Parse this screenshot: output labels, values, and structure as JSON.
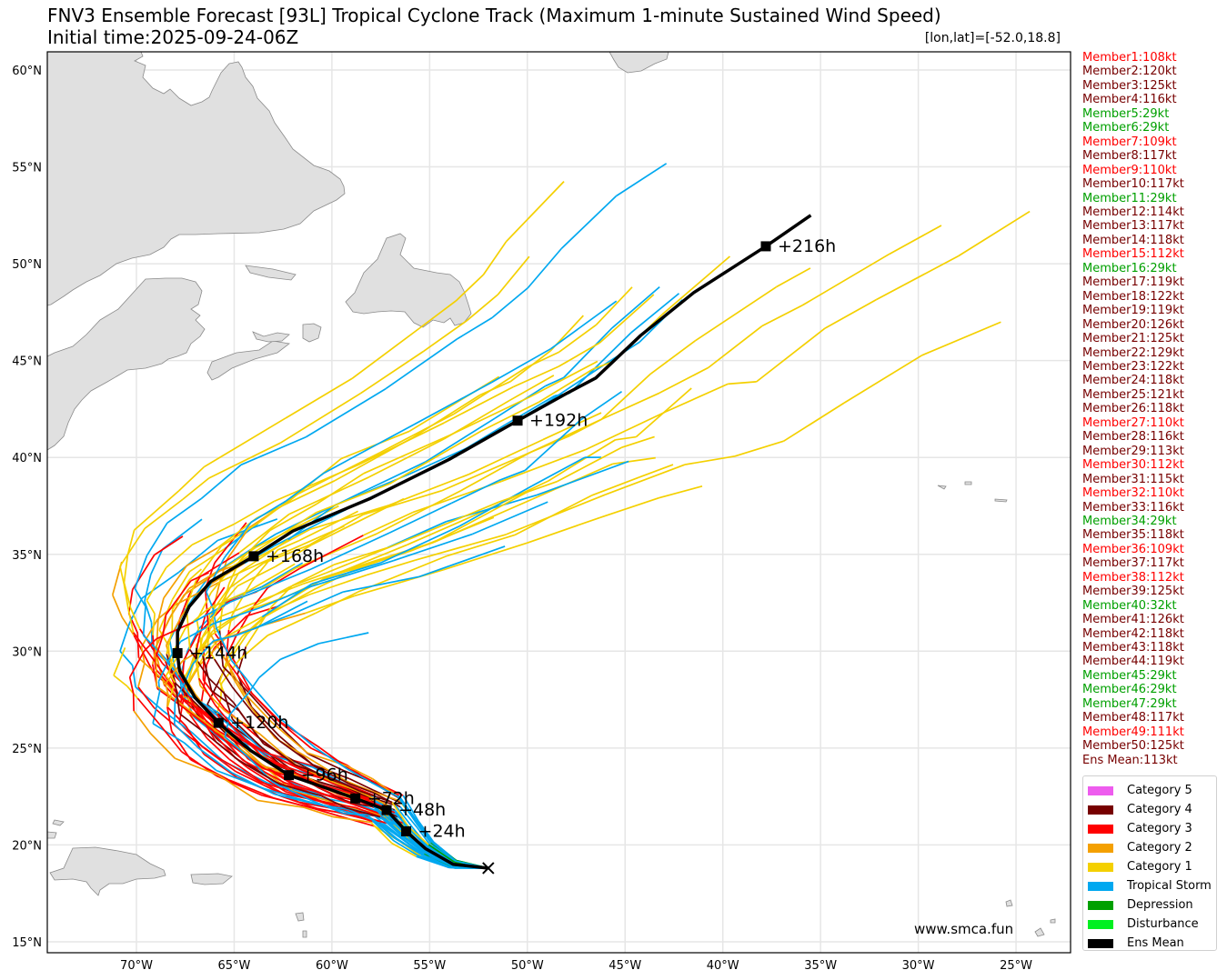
{
  "header": {
    "title": "FNV3 Ensemble Forecast [93L] Tropical Cyclone Track (Maximum 1-minute Sustained Wind Speed)",
    "subtitle": "Initial time:2025-09-24-06Z",
    "coordinates": "[lon,lat]=[-52.0,18.8]"
  },
  "watermark": "www.smca.fun",
  "axes": {
    "x_ticks": [
      "70°W",
      "65°W",
      "60°W",
      "55°W",
      "50°W",
      "45°W",
      "40°W",
      "35°W",
      "30°W",
      "25°W"
    ],
    "y_ticks": [
      "60°N",
      "55°N",
      "50°N",
      "45°N",
      "40°N",
      "35°N",
      "30°N",
      "25°N",
      "20°N",
      "15°N"
    ]
  },
  "colors": {
    "cat5": "#ee5cee",
    "cat4": "#770000",
    "cat3": "#ff0000",
    "cat2": "#f4a000",
    "cat1": "#f4d000",
    "ts": "#00a8f0",
    "td": "#00a000",
    "dist": "#00f020",
    "mean": "#000000"
  },
  "members": [
    {
      "label": "Member1:108kt",
      "color": "#ff0000"
    },
    {
      "label": "Member2:120kt",
      "color": "#770000"
    },
    {
      "label": "Member3:125kt",
      "color": "#770000"
    },
    {
      "label": "Member4:116kt",
      "color": "#770000"
    },
    {
      "label": "Member5:29kt",
      "color": "#00a000"
    },
    {
      "label": "Member6:29kt",
      "color": "#00a000"
    },
    {
      "label": "Member7:109kt",
      "color": "#ff0000"
    },
    {
      "label": "Member8:117kt",
      "color": "#770000"
    },
    {
      "label": "Member9:110kt",
      "color": "#ff0000"
    },
    {
      "label": "Member10:117kt",
      "color": "#770000"
    },
    {
      "label": "Member11:29kt",
      "color": "#00a000"
    },
    {
      "label": "Member12:114kt",
      "color": "#770000"
    },
    {
      "label": "Member13:117kt",
      "color": "#770000"
    },
    {
      "label": "Member14:118kt",
      "color": "#770000"
    },
    {
      "label": "Member15:112kt",
      "color": "#ff0000"
    },
    {
      "label": "Member16:29kt",
      "color": "#00a000"
    },
    {
      "label": "Member17:119kt",
      "color": "#770000"
    },
    {
      "label": "Member18:122kt",
      "color": "#770000"
    },
    {
      "label": "Member19:119kt",
      "color": "#770000"
    },
    {
      "label": "Member20:126kt",
      "color": "#770000"
    },
    {
      "label": "Member21:125kt",
      "color": "#770000"
    },
    {
      "label": "Member22:129kt",
      "color": "#770000"
    },
    {
      "label": "Member23:122kt",
      "color": "#770000"
    },
    {
      "label": "Member24:118kt",
      "color": "#770000"
    },
    {
      "label": "Member25:121kt",
      "color": "#770000"
    },
    {
      "label": "Member26:118kt",
      "color": "#770000"
    },
    {
      "label": "Member27:110kt",
      "color": "#ff0000"
    },
    {
      "label": "Member28:116kt",
      "color": "#770000"
    },
    {
      "label": "Member29:113kt",
      "color": "#770000"
    },
    {
      "label": "Member30:112kt",
      "color": "#ff0000"
    },
    {
      "label": "Member31:115kt",
      "color": "#770000"
    },
    {
      "label": "Member32:110kt",
      "color": "#ff0000"
    },
    {
      "label": "Member33:116kt",
      "color": "#770000"
    },
    {
      "label": "Member34:29kt",
      "color": "#00a000"
    },
    {
      "label": "Member35:118kt",
      "color": "#770000"
    },
    {
      "label": "Member36:109kt",
      "color": "#ff0000"
    },
    {
      "label": "Member37:117kt",
      "color": "#770000"
    },
    {
      "label": "Member38:112kt",
      "color": "#ff0000"
    },
    {
      "label": "Member39:125kt",
      "color": "#770000"
    },
    {
      "label": "Member40:32kt",
      "color": "#00a000"
    },
    {
      "label": "Member41:126kt",
      "color": "#770000"
    },
    {
      "label": "Member42:118kt",
      "color": "#770000"
    },
    {
      "label": "Member43:118kt",
      "color": "#770000"
    },
    {
      "label": "Member44:119kt",
      "color": "#770000"
    },
    {
      "label": "Member45:29kt",
      "color": "#00a000"
    },
    {
      "label": "Member46:29kt",
      "color": "#00a000"
    },
    {
      "label": "Member47:29kt",
      "color": "#00a000"
    },
    {
      "label": "Member48:117kt",
      "color": "#770000"
    },
    {
      "label": "Member49:111kt",
      "color": "#ff0000"
    },
    {
      "label": "Member50:125kt",
      "color": "#770000"
    },
    {
      "label": "Ens Mean:113kt",
      "color": "#770000"
    }
  ],
  "legend": [
    {
      "label": "Category 5",
      "color": "#ee5cee"
    },
    {
      "label": "Category 4",
      "color": "#770000"
    },
    {
      "label": "Category 3",
      "color": "#ff0000"
    },
    {
      "label": "Category 2",
      "color": "#f4a000"
    },
    {
      "label": "Category 1",
      "color": "#f4d000"
    },
    {
      "label": "Tropical Storm",
      "color": "#00a8f0"
    },
    {
      "label": "Depression",
      "color": "#00a000"
    },
    {
      "label": "Disturbance",
      "color": "#00f020"
    },
    {
      "label": "Ens Mean",
      "color": "#000000"
    }
  ],
  "mean_track": {
    "points": [
      [
        -52.0,
        18.8
      ],
      [
        -53.8,
        19.0
      ],
      [
        -55.2,
        19.8
      ],
      [
        -56.2,
        20.7
      ],
      [
        -57.2,
        21.8
      ],
      [
        -58.8,
        22.4
      ],
      [
        -60.2,
        22.9
      ],
      [
        -62.2,
        23.6
      ],
      [
        -64.2,
        24.9
      ],
      [
        -65.8,
        26.3
      ],
      [
        -67.0,
        27.6
      ],
      [
        -67.8,
        29.0
      ],
      [
        -67.9,
        29.9
      ],
      [
        -67.9,
        31.0
      ],
      [
        -67.3,
        32.3
      ],
      [
        -66.2,
        33.6
      ],
      [
        -64.0,
        34.9
      ],
      [
        -62.0,
        36.2
      ],
      [
        -58.0,
        37.9
      ],
      [
        -54.0,
        39.9
      ],
      [
        -50.5,
        41.9
      ],
      [
        -48.0,
        43.3
      ],
      [
        -46.5,
        44.1
      ],
      [
        -44.2,
        46.3
      ],
      [
        -41.5,
        48.5
      ],
      [
        -37.8,
        50.9
      ],
      [
        -35.5,
        52.5
      ]
    ],
    "labels": [
      {
        "text": "+24h",
        "lon": -56.2,
        "lat": 20.7
      },
      {
        "text": "+48h",
        "lon": -57.2,
        "lat": 21.8
      },
      {
        "text": "+72h",
        "lon": -58.8,
        "lat": 22.4
      },
      {
        "text": "+96h",
        "lon": -62.2,
        "lat": 23.6
      },
      {
        "text": "+120h",
        "lon": -65.8,
        "lat": 26.3
      },
      {
        "text": "+144h",
        "lon": -67.9,
        "lat": 29.9
      },
      {
        "text": "+168h",
        "lon": -64.0,
        "lat": 34.9
      },
      {
        "text": "+192h",
        "lon": -50.5,
        "lat": 41.9
      },
      {
        "text": "+216h",
        "lon": -37.8,
        "lat": 50.9
      }
    ],
    "start": [
      -52.0,
      18.8
    ]
  }
}
